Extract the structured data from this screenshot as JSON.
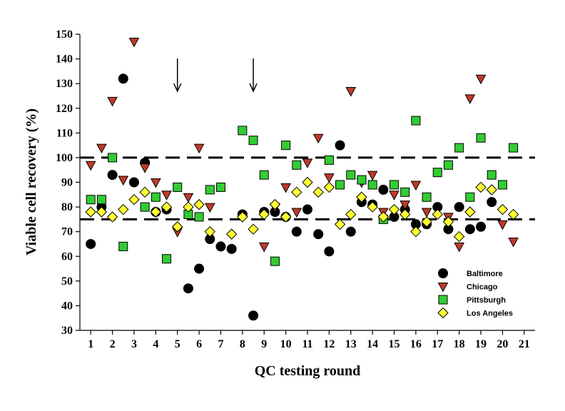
{
  "chart_data": {
    "type": "scatter",
    "title": "",
    "xlabel": "QC testing round",
    "ylabel": "Viable cell recovery (%)",
    "xlim": [
      0.5,
      21.5
    ],
    "ylim": [
      30,
      150
    ],
    "x_ticks": [
      1,
      2,
      3,
      4,
      5,
      6,
      7,
      8,
      9,
      10,
      11,
      12,
      13,
      14,
      15,
      16,
      17,
      18,
      19,
      20,
      21
    ],
    "y_ticks": [
      30,
      40,
      50,
      60,
      70,
      80,
      90,
      100,
      110,
      120,
      130,
      140,
      150
    ],
    "reference_lines": [
      100,
      75
    ],
    "arrows_at_x": [
      5,
      8.5
    ],
    "legend_position": "bottom-right",
    "grid": false,
    "series": [
      {
        "name": "Baltimore",
        "marker": "circle",
        "color": "#000000",
        "points": [
          [
            1,
            65
          ],
          [
            1.5,
            80
          ],
          [
            2,
            93
          ],
          [
            2.5,
            132
          ],
          [
            3,
            90
          ],
          [
            3.5,
            98
          ],
          [
            4,
            78
          ],
          [
            4.5,
            79
          ],
          [
            5.5,
            47
          ],
          [
            6,
            55
          ],
          [
            6.5,
            67
          ],
          [
            7,
            64
          ],
          [
            7.5,
            63
          ],
          [
            8,
            77
          ],
          [
            8.5,
            36
          ],
          [
            9,
            78
          ],
          [
            9.5,
            78
          ],
          [
            10,
            76
          ],
          [
            10.5,
            70
          ],
          [
            11,
            79
          ],
          [
            11.5,
            69
          ],
          [
            12,
            62
          ],
          [
            12.5,
            105
          ],
          [
            13,
            70
          ],
          [
            13.5,
            82
          ],
          [
            14,
            81
          ],
          [
            14.5,
            87
          ],
          [
            15,
            76
          ],
          [
            15.5,
            79
          ],
          [
            16,
            73
          ],
          [
            16.5,
            73
          ],
          [
            17,
            80
          ],
          [
            17.5,
            71
          ],
          [
            18,
            80
          ],
          [
            18.5,
            71
          ],
          [
            19,
            72
          ],
          [
            19.5,
            82
          ]
        ]
      },
      {
        "name": "Chicago",
        "marker": "triangle-down",
        "color": "#c0392b",
        "points": [
          [
            1,
            97
          ],
          [
            1.5,
            104
          ],
          [
            2,
            123
          ],
          [
            2.5,
            91
          ],
          [
            3,
            147
          ],
          [
            3.5,
            96
          ],
          [
            4,
            90
          ],
          [
            4.5,
            85
          ],
          [
            5,
            70
          ],
          [
            5.5,
            84
          ],
          [
            6,
            104
          ],
          [
            6.5,
            80
          ],
          [
            8,
            76
          ],
          [
            9,
            64
          ],
          [
            9.5,
            80
          ],
          [
            10,
            88
          ],
          [
            10.5,
            78
          ],
          [
            11,
            98
          ],
          [
            11.5,
            108
          ],
          [
            12,
            92
          ],
          [
            13,
            127
          ],
          [
            13.5,
            90
          ],
          [
            14,
            93
          ],
          [
            14.5,
            78
          ],
          [
            15,
            85
          ],
          [
            15.5,
            81
          ],
          [
            16,
            89
          ],
          [
            16.5,
            78
          ],
          [
            17.5,
            76
          ],
          [
            18,
            64
          ],
          [
            18.5,
            124
          ],
          [
            19,
            132
          ],
          [
            20,
            73
          ],
          [
            20.5,
            66
          ]
        ]
      },
      {
        "name": "Pittsburgh",
        "marker": "square",
        "color": "#33cc33",
        "points": [
          [
            1,
            83
          ],
          [
            1.5,
            83
          ],
          [
            2,
            100
          ],
          [
            2.5,
            64
          ],
          [
            3.5,
            80
          ],
          [
            4,
            84
          ],
          [
            4.5,
            59
          ],
          [
            5,
            88
          ],
          [
            5.5,
            77
          ],
          [
            6,
            76
          ],
          [
            6.5,
            87
          ],
          [
            7,
            88
          ],
          [
            8,
            111
          ],
          [
            8.5,
            107
          ],
          [
            9,
            93
          ],
          [
            9.5,
            58
          ],
          [
            10,
            105
          ],
          [
            10.5,
            97
          ],
          [
            12,
            99
          ],
          [
            12.5,
            89
          ],
          [
            13,
            93
          ],
          [
            13.5,
            91
          ],
          [
            14,
            89
          ],
          [
            14.5,
            75
          ],
          [
            15,
            89
          ],
          [
            15.5,
            86
          ],
          [
            16,
            115
          ],
          [
            16.5,
            84
          ],
          [
            17,
            94
          ],
          [
            17.5,
            97
          ],
          [
            18,
            104
          ],
          [
            18.5,
            84
          ],
          [
            19,
            108
          ],
          [
            19.5,
            93
          ],
          [
            20,
            89
          ],
          [
            20.5,
            104
          ]
        ]
      },
      {
        "name": "Los Angeles",
        "marker": "diamond",
        "color": "#ffff33",
        "points": [
          [
            1,
            78
          ],
          [
            1.5,
            78
          ],
          [
            2,
            76
          ],
          [
            2.5,
            79
          ],
          [
            3,
            83
          ],
          [
            3.5,
            86
          ],
          [
            4,
            78
          ],
          [
            4.5,
            80
          ],
          [
            5,
            72
          ],
          [
            5.5,
            80
          ],
          [
            6,
            81
          ],
          [
            6.5,
            70
          ],
          [
            7.5,
            69
          ],
          [
            8,
            76
          ],
          [
            8.5,
            71
          ],
          [
            9,
            77
          ],
          [
            9.5,
            81
          ],
          [
            10,
            76
          ],
          [
            10.5,
            86
          ],
          [
            11,
            90
          ],
          [
            11.5,
            86
          ],
          [
            12,
            88
          ],
          [
            12.5,
            73
          ],
          [
            13,
            77
          ],
          [
            13.5,
            84
          ],
          [
            14,
            80
          ],
          [
            14.5,
            76
          ],
          [
            15,
            79
          ],
          [
            15.5,
            77
          ],
          [
            16,
            70
          ],
          [
            16.5,
            74
          ],
          [
            17,
            77
          ],
          [
            17.5,
            74
          ],
          [
            18,
            68
          ],
          [
            18.5,
            78
          ],
          [
            19,
            88
          ],
          [
            19.5,
            87
          ],
          [
            20,
            79
          ],
          [
            20.5,
            77
          ]
        ]
      }
    ]
  }
}
